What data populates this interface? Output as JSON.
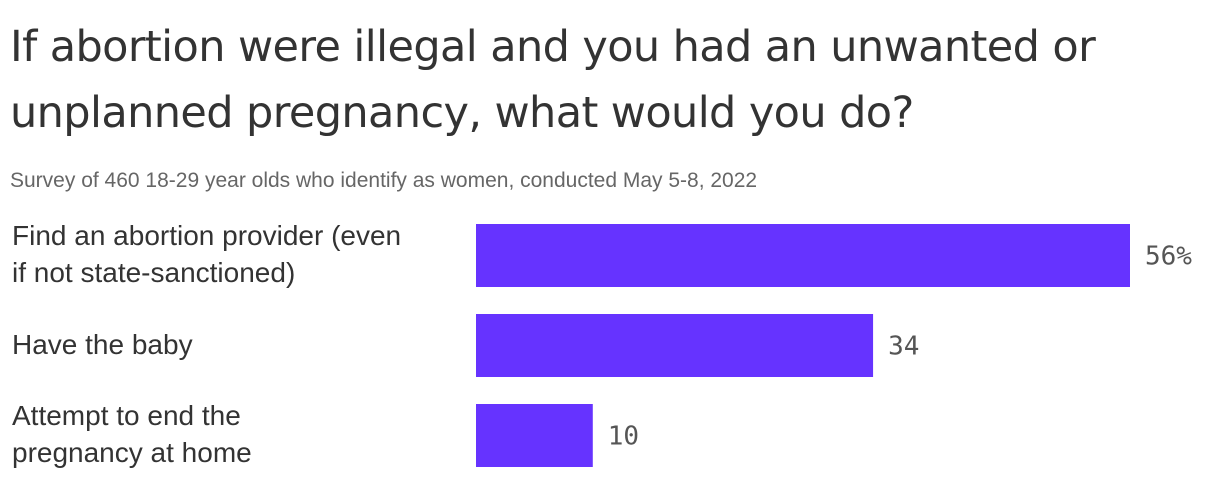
{
  "chart_data": {
    "type": "bar",
    "orientation": "horizontal",
    "title": "If abortion were illegal and you had an unwanted or unplanned pregnancy, what would you do?",
    "subtitle": "Survey of 460 18-29 year olds who identify as women, conducted May 5-8, 2022",
    "categories": [
      "Find an abortion provider (even\nif not state-sanctioned)",
      "Have the baby",
      "Attempt to end the\npregnancy at home"
    ],
    "values": [
      56,
      34,
      10
    ],
    "value_labels": [
      "56%",
      "34",
      "10"
    ],
    "unit": "%",
    "xlim": [
      0,
      56
    ],
    "grid": false,
    "legend": "none",
    "bar_color": "#6633ff"
  }
}
